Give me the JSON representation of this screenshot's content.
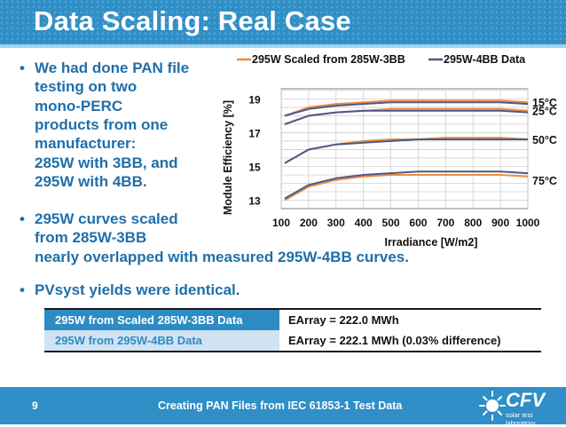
{
  "header": {
    "title": "Data Scaling: Real Case"
  },
  "bullets": {
    "b1": [
      "We had done PAN file",
      "testing on two",
      "mono-PERC",
      "products from one",
      "manufacturer:",
      "285W with 3BB, and",
      "295W with 4BB."
    ],
    "b2": [
      "295W curves scaled",
      "from 285W-3BB",
      "nearly overlapped with measured 295W-4BB curves."
    ],
    "b3": [
      "PVsyst yields were identical."
    ],
    "dot": "•"
  },
  "table": {
    "rows": [
      {
        "label": "295W from Scaled 285W-3BB Data",
        "value": "EArray = 222.0 MWh"
      },
      {
        "label": "295W from 295W-4BB Data",
        "value": "EArray = 222.1 MWh (0.03% difference)"
      }
    ]
  },
  "footer": {
    "page": "9",
    "text": "Creating PAN Files from IEC 61853-1 Test Data"
  },
  "logo": {
    "name": "CFV",
    "subtitle": "solar test laboratory"
  },
  "colors": {
    "accent": "#2f8fc6",
    "scaled": "#f08c3c",
    "measured": "#4a5a8c"
  },
  "chart_data": {
    "type": "line",
    "xlabel": "Irradiance [W/m2]",
    "ylabel": "Module Efficiency [%]",
    "xticks": [
      100,
      200,
      300,
      400,
      500,
      600,
      700,
      800,
      900,
      1000
    ],
    "yticks": [
      13,
      15,
      17,
      19
    ],
    "xlim": [
      100,
      1000
    ],
    "ylim": [
      12.5,
      19.6
    ],
    "grid": true,
    "legend": "top",
    "temperature_labels": [
      "15°C",
      "25°C",
      "50°C",
      "75°C"
    ],
    "x": [
      100,
      200,
      300,
      400,
      500,
      600,
      700,
      800,
      900,
      1000
    ],
    "series": [
      {
        "name": "295W Scaled from 285W-3BB",
        "group": "15°C",
        "values": [
          18.0,
          18.5,
          18.7,
          18.8,
          18.9,
          18.9,
          18.9,
          18.9,
          18.9,
          18.8
        ]
      },
      {
        "name": "295W-4BB Data",
        "group": "15°C",
        "values": [
          18.0,
          18.4,
          18.6,
          18.7,
          18.8,
          18.8,
          18.8,
          18.8,
          18.8,
          18.7
        ]
      },
      {
        "name": "295W Scaled from 285W-3BB",
        "group": "25°C",
        "values": [
          17.5,
          18.0,
          18.2,
          18.3,
          18.4,
          18.4,
          18.4,
          18.4,
          18.4,
          18.3
        ]
      },
      {
        "name": "295W-4BB Data",
        "group": "25°C",
        "values": [
          17.5,
          18.0,
          18.2,
          18.3,
          18.3,
          18.3,
          18.3,
          18.3,
          18.3,
          18.2
        ]
      },
      {
        "name": "295W Scaled from 285W-3BB",
        "group": "50°C",
        "values": [
          15.2,
          16.0,
          16.3,
          16.5,
          16.6,
          16.6,
          16.7,
          16.7,
          16.7,
          16.6
        ]
      },
      {
        "name": "295W-4BB Data",
        "group": "50°C",
        "values": [
          15.2,
          16.0,
          16.3,
          16.4,
          16.5,
          16.6,
          16.6,
          16.6,
          16.6,
          16.6
        ]
      },
      {
        "name": "295W Scaled from 285W-3BB",
        "group": "75°C",
        "values": [
          13.0,
          13.8,
          14.2,
          14.4,
          14.5,
          14.5,
          14.5,
          14.5,
          14.5,
          14.4
        ]
      },
      {
        "name": "295W-4BB Data",
        "group": "75°C",
        "values": [
          13.1,
          13.9,
          14.3,
          14.5,
          14.6,
          14.7,
          14.7,
          14.7,
          14.7,
          14.6
        ]
      }
    ],
    "legend_entries": [
      "295W Scaled from 285W-3BB",
      "295W-4BB Data"
    ]
  }
}
